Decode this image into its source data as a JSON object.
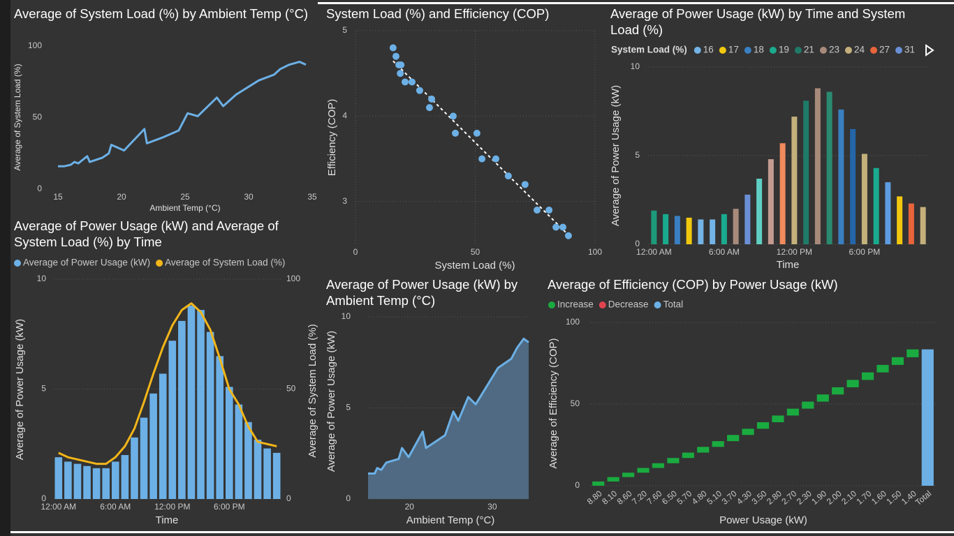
{
  "chart_data": [
    {
      "type": "line",
      "title": "Average of System Load (%) by Ambient Temp (°C)",
      "x_label": "Ambient Temp (°C)",
      "y_label": "Average of System Load (%)",
      "x": [
        15,
        15.5,
        16,
        16.3,
        16.6,
        17.3,
        17.5,
        18.5,
        19,
        19.2,
        20.2,
        21.8,
        22,
        23.2,
        24.5,
        25.2,
        26,
        27.5,
        28,
        29,
        30.8,
        32,
        32.5,
        33.2,
        34,
        34.5
      ],
      "values": [
        16,
        16,
        17,
        19,
        18,
        23,
        19,
        22,
        25,
        31,
        27,
        42,
        32,
        36,
        41,
        53,
        51,
        64,
        58,
        66,
        76,
        80,
        84,
        87,
        89,
        87
      ],
      "color": "#6cb0e6",
      "xlim": [
        15,
        35
      ],
      "xticks": [
        15,
        20,
        25,
        30,
        35
      ],
      "ylim": [
        0,
        100
      ],
      "yticks": [
        0,
        50,
        100
      ],
      "grid": false
    },
    {
      "type": "scatter",
      "title": "System Load (%) and Efficiency (COP)",
      "x_label": "System Load (%)",
      "y_label": "Efficiency (COP)",
      "x": [
        15.7,
        16.9,
        18.1,
        19,
        18.7,
        20.7,
        23.6,
        26.8,
        31.8,
        30.9,
        40.8,
        41.7,
        50.7,
        52.8,
        58.6,
        63.8,
        70.8,
        75.8,
        80.8,
        83.7,
        86.6,
        88.9
      ],
      "values": [
        4.8,
        4.7,
        4.6,
        4.6,
        4.5,
        4.4,
        4.4,
        4.3,
        4.2,
        4.1,
        4.0,
        3.8,
        3.8,
        3.5,
        3.5,
        3.3,
        3.2,
        2.9,
        2.9,
        2.7,
        2.7,
        2.6
      ],
      "color": "#6cb0e6",
      "trendline": true,
      "xlim": [
        0,
        100
      ],
      "xticks": [
        0,
        50,
        100
      ],
      "ylim": [
        2.5,
        5
      ],
      "yticks": [
        3,
        4,
        5
      ],
      "grid": true
    },
    {
      "type": "bar",
      "title": "Average of Power Usage (kW) by Time and System Load (%)",
      "x_label": "Time",
      "y_label": "Average of Power Usage (kW)",
      "legend_title": "System Load (%)",
      "legend": [
        {
          "name": 16,
          "color": "#74b3e6"
        },
        {
          "name": 17,
          "color": "#f2c80f"
        },
        {
          "name": 18,
          "color": "#3a7fc1"
        },
        {
          "name": 19,
          "color": "#1aab8f"
        },
        {
          "name": 21,
          "color": "#1f7a68"
        },
        {
          "name": 23,
          "color": "#a88a7b"
        },
        {
          "name": 24,
          "color": "#c4b07b"
        },
        {
          "name": 27,
          "color": "#e8643b"
        },
        {
          "name": 31,
          "color": "#6a8fd6"
        }
      ],
      "categories": [
        "12:00 AM",
        null,
        null,
        null,
        null,
        null,
        "6:00 AM",
        null,
        null,
        null,
        null,
        null,
        "12:00 PM",
        null,
        null,
        null,
        null,
        null,
        "6:00 PM",
        null,
        null,
        null,
        null,
        null
      ],
      "values": [
        1.9,
        1.7,
        1.6,
        1.5,
        1.4,
        1.4,
        1.7,
        2.0,
        2.8,
        3.7,
        4.8,
        5.7,
        7.2,
        8.1,
        8.8,
        8.6,
        7.6,
        6.5,
        5.1,
        4.3,
        3.5,
        2.7,
        2.3,
        2.1
      ],
      "colors": [
        "#1d9a7a",
        "#1aab8f",
        "#3a7fc1",
        "#f2c80f",
        "#74b3e6",
        "#74b3e6",
        "#1aab8f",
        "#a88a7b",
        "#6a8fd6",
        "#5fcfc3",
        "#c49a90",
        "#f08a5d",
        "#c4b07b",
        "#1f7a68",
        "#a88a7b",
        "#2a8a70",
        "#3a7fc1",
        "#2466a8",
        "#c4b07b",
        "#1aab8f",
        "#5f9be0",
        "#f2c80f",
        "#e8643b",
        "#c4b07b"
      ],
      "ylim": [
        0,
        10
      ],
      "yticks": [
        0,
        5,
        10
      ],
      "grid": true
    },
    {
      "type": "combo",
      "title": "Average of Power Usage (kW) and Average of System Load (%) by Time",
      "x_label": "Time",
      "y_label": "Average of Power Usage (kW)",
      "categories": [
        "12:00 AM",
        null,
        null,
        null,
        null,
        null,
        "6:00 AM",
        null,
        null,
        null,
        null,
        null,
        "12:00 PM",
        null,
        null,
        null,
        null,
        null,
        "6:00 PM",
        null,
        null,
        null,
        null,
        null
      ],
      "series": [
        {
          "name": "Average of Power Usage (kW)",
          "color": "#6cb0e6",
          "values": [
            1.9,
            1.7,
            1.6,
            1.5,
            1.4,
            1.4,
            1.7,
            2.0,
            2.8,
            3.7,
            4.8,
            5.7,
            7.2,
            8.1,
            8.8,
            8.6,
            7.6,
            6.5,
            5.1,
            4.3,
            3.5,
            2.7,
            2.3,
            2.1
          ]
        },
        {
          "name": "Average of System Load (%)",
          "color": "#f2b619",
          "axis": "y2",
          "values": [
            21,
            19,
            18,
            17,
            16,
            16,
            19,
            24,
            32,
            44,
            57,
            69,
            79,
            86,
            89,
            85,
            77,
            64,
            50,
            43,
            33,
            26,
            25,
            24
          ]
        }
      ],
      "ylim": [
        0,
        10
      ],
      "yticks": [
        0,
        5,
        10
      ],
      "y2lim": [
        0,
        100
      ],
      "y2ticks": [
        0,
        50,
        100
      ],
      "grid": true
    },
    {
      "type": "area",
      "title": "Average of Power Usage (kW) by Ambient Temp (°C)",
      "x_label": "Ambient Temp (°C)",
      "y_labels": [
        "Average of System Load (%)",
        "Average of Power Usage (kW)"
      ],
      "x": [
        15,
        15.8,
        16.1,
        16.6,
        17.2,
        18.7,
        19.1,
        19.9,
        21.6,
        22,
        24.3,
        25.3,
        25.9,
        27.1,
        28,
        30.7,
        32.3,
        33,
        33.8,
        34.4
      ],
      "values": [
        1.4,
        1.4,
        1.7,
        1.6,
        2.0,
        2.2,
        2.8,
        2.3,
        3.7,
        2.8,
        3.5,
        4.8,
        4.3,
        5.6,
        5.2,
        7.2,
        7.7,
        8.3,
        8.8,
        8.6
      ],
      "color": "#6cb0e6",
      "fill": "#4f6a82",
      "xlim": [
        15,
        34.4
      ],
      "xticks": [
        20,
        30
      ],
      "ylim": [
        0,
        10
      ],
      "yticks": [
        0,
        5,
        10
      ],
      "grid": true
    },
    {
      "type": "waterfall",
      "title": "Average of Efficiency (COP) by Power Usage (kW)",
      "x_label": "Power Usage (kW)",
      "y_label": "Average of Efficiency (COP)",
      "legend": [
        {
          "name": "Increase",
          "color": "#1aab40"
        },
        {
          "name": "Decrease",
          "color": "#e0444f"
        },
        {
          "name": "Total",
          "color": "#6cb0e6"
        }
      ],
      "categories": [
        "8.80",
        "8.10",
        "8.60",
        "7.20",
        "7.60",
        "6.50",
        "5.70",
        "4.80",
        "5.10",
        "3.70",
        "4.30",
        "3.50",
        "2.80",
        "2.70",
        "2.30",
        "1.90",
        "2.00",
        "2.10",
        "1.70",
        "1.60",
        "1.50",
        "1.40"
      ],
      "values": [
        2.6,
        2.7,
        2.7,
        2.9,
        2.9,
        3.2,
        3.3,
        3.5,
        3.5,
        3.8,
        3.8,
        4.0,
        4.1,
        4.2,
        4.3,
        4.4,
        4.4,
        4.5,
        4.6,
        4.6,
        4.7,
        4.8
      ],
      "total_label": "Total",
      "total": 83.5,
      "ylim": [
        0,
        100
      ],
      "yticks": [
        0,
        50,
        100
      ],
      "grid": true
    }
  ]
}
